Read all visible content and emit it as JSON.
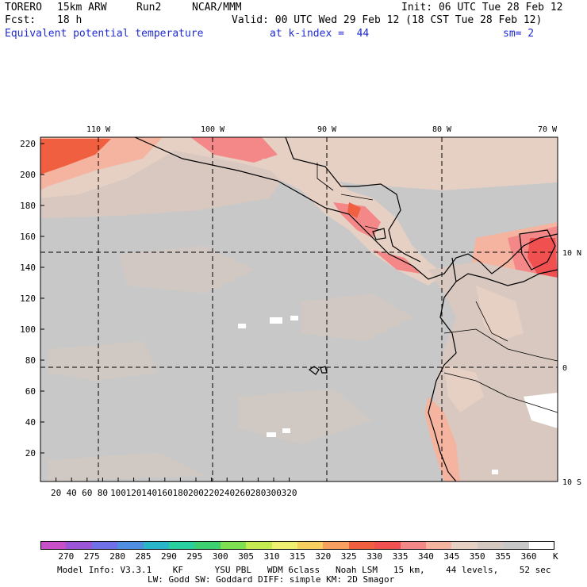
{
  "header": {
    "model": "TORERO",
    "res": "15km ARW",
    "run": "Run2",
    "org": "NCAR/MMM",
    "init": "Init: 06 UTC Tue 28 Feb 12",
    "fcst_label": "Fcst:",
    "fcst_value": "18 h",
    "valid": "Valid: 00 UTC Wed 29 Feb 12 (18 CST Tue 28 Feb 12)",
    "field": "Equivalent potential temperature",
    "level": "at k-index =  44",
    "smooth": "sm= 2"
  },
  "map": {
    "lon_labels": [
      "110 W",
      "100 W",
      "90 W",
      "80 W",
      "70 W"
    ],
    "lat_labels": [
      "10 N",
      "0",
      "10 S"
    ],
    "x_ticks": [
      "20",
      "40",
      "60",
      "80",
      "100",
      "120",
      "140",
      "160",
      "180",
      "200",
      "220",
      "240",
      "260",
      "280",
      "300",
      "320"
    ],
    "y_ticks": [
      "220",
      "200",
      "180",
      "160",
      "140",
      "120",
      "100",
      "80",
      "60",
      "40",
      "20"
    ]
  },
  "colorbar": {
    "labels": [
      "270",
      "275",
      "280",
      "285",
      "290",
      "295",
      "300",
      "305",
      "310",
      "315",
      "320",
      "325",
      "330",
      "335",
      "340",
      "345",
      "350",
      "355",
      "360"
    ],
    "unit": "K",
    "colors": [
      "#c84fc8",
      "#9a55d8",
      "#7070e8",
      "#4f8ee0",
      "#28b6c8",
      "#28d0a0",
      "#3cd070",
      "#7ee050",
      "#c4ec50",
      "#f0f070",
      "#f8d060",
      "#f8a060",
      "#f06040",
      "#f05050",
      "#f48888",
      "#f4b4a0",
      "#e6d0c4",
      "#d4c8c0",
      "#c8c8c8",
      "#ffffff"
    ],
    "accent_sea": "#c8c8c8",
    "accent_land": "#d8c8c0"
  },
  "footer": {
    "line1": "Model Info: V3.3.1    KF      YSU PBL   WDM 6class   Noah LSM   15 km,    44 levels,    52 sec",
    "line2": "LW: Godd SW: Goddard DIFF: simple KM: 2D Smagor"
  }
}
